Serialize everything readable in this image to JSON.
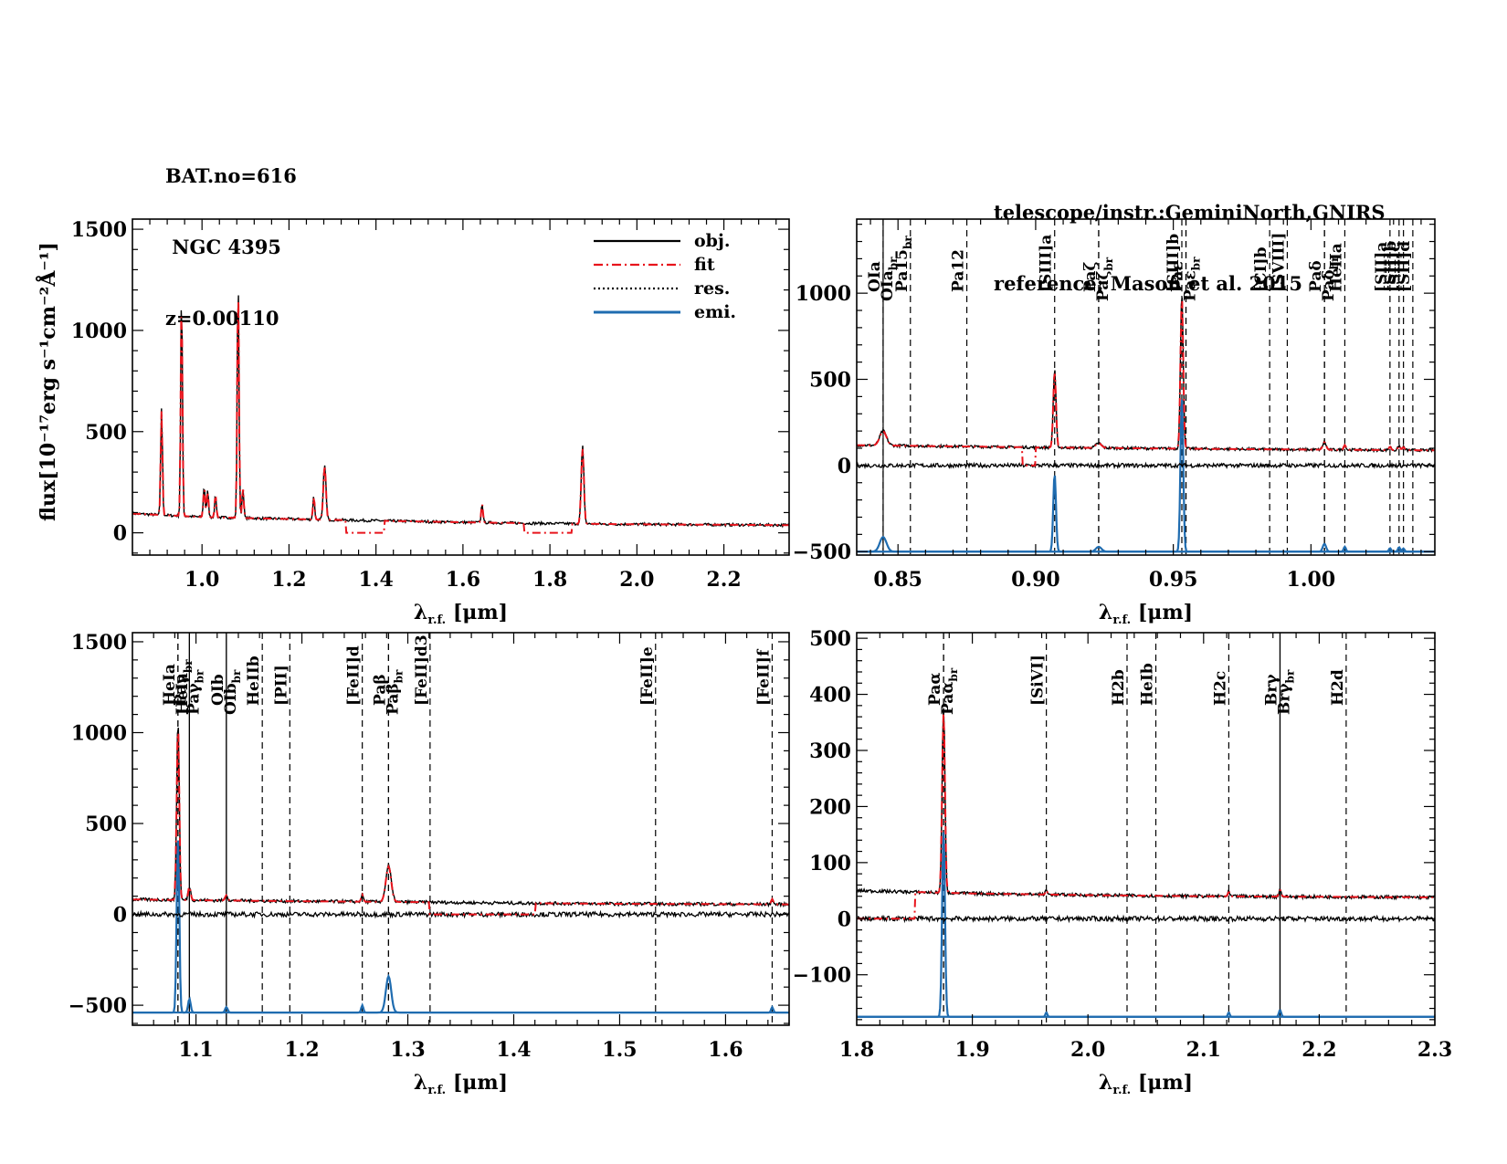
{
  "header": {
    "object_lines": [
      "BAT.no=616",
      " NGC 4395",
      "z=0.00110"
    ],
    "telescope": "telescope/instr.:GeminiNorth,GNIRS",
    "reference": "reference: Mason et al. 2015"
  },
  "legend": {
    "placement": "top-right",
    "entries": [
      {
        "key": "obj",
        "label": "obj.",
        "color": "#000000",
        "style": "solid"
      },
      {
        "key": "fit",
        "label": "fit",
        "color": "#e8141c",
        "style": "dash-dot"
      },
      {
        "key": "res",
        "label": "res.",
        "color": "#000000",
        "style": "dotted"
      },
      {
        "key": "emi",
        "label": "emi.",
        "color": "#1f6cb0",
        "style": "solid"
      }
    ]
  },
  "colors": {
    "obj": "#000000",
    "fit": "#e8141c",
    "res": "#000000",
    "emi": "#1f6cb0"
  },
  "chart_data": [
    {
      "type": "line",
      "id": "full",
      "xlabel": "λr.f. [μm]",
      "ylabel": "flux[10⁻¹⁷erg s⁻¹cm⁻²Å⁻¹]",
      "xlim": [
        0.84,
        2.35
      ],
      "ylim": [
        -110,
        1550
      ],
      "xticks": [
        1.0,
        1.2,
        1.4,
        1.6,
        1.8,
        2.0,
        2.2
      ],
      "xtick_labels": [
        "1.0",
        "1.2",
        "1.4",
        "1.6",
        "1.8",
        "2.0",
        "2.2"
      ],
      "yticks": [
        0,
        500,
        1000,
        1500
      ],
      "ytick_labels": [
        "0",
        "500",
        "1000",
        "1500"
      ],
      "continuum": [
        [
          0.84,
          95
        ],
        [
          1.0,
          78
        ],
        [
          1.2,
          68
        ],
        [
          1.4,
          60
        ],
        [
          1.6,
          52
        ],
        [
          1.8,
          46
        ],
        [
          2.0,
          42
        ],
        [
          2.35,
          38
        ]
      ],
      "peaks": [
        {
          "x": 0.907,
          "y": 530,
          "w": 0.002
        },
        {
          "x": 0.953,
          "y": 1105,
          "w": 0.002
        },
        {
          "x": 1.005,
          "y": 155,
          "w": 0.002
        },
        {
          "x": 1.013,
          "y": 130,
          "w": 0.002
        },
        {
          "x": 1.031,
          "y": 110,
          "w": 0.002
        },
        {
          "x": 1.083,
          "y": 1185,
          "w": 0.002
        },
        {
          "x": 1.094,
          "y": 150,
          "w": 0.002
        },
        {
          "x": 1.257,
          "y": 115,
          "w": 0.002
        },
        {
          "x": 1.282,
          "y": 275,
          "w": 0.003
        },
        {
          "x": 1.644,
          "y": 95,
          "w": 0.002
        },
        {
          "x": 1.875,
          "y": 385,
          "w": 0.003
        }
      ],
      "fit_gaps": [
        [
          1.33,
          1.42
        ],
        [
          1.74,
          1.85
        ]
      ],
      "show_residual": false,
      "show_emission": false,
      "lines": []
    },
    {
      "type": "line",
      "id": "zoom-0.84-1.05",
      "xlabel": "λr.f. [μm]",
      "xlim": [
        0.835,
        1.045
      ],
      "ylim": [
        -520,
        1430
      ],
      "xticks": [
        0.85,
        0.9,
        0.95,
        1.0
      ],
      "xtick_labels": [
        "0.85",
        "0.90",
        "0.95",
        "1.00"
      ],
      "yticks": [
        -500,
        0,
        500,
        1000
      ],
      "ytick_labels": [
        "−500",
        "0",
        "500",
        "1000"
      ],
      "continuum": [
        [
          0.835,
          118
        ],
        [
          0.9,
          105
        ],
        [
          0.95,
          98
        ],
        [
          1.0,
          92
        ],
        [
          1.045,
          88
        ]
      ],
      "peaks": [
        {
          "x": 0.8446,
          "y": 85,
          "w": 0.0012
        },
        {
          "x": 0.9069,
          "y": 450,
          "w": 0.0005
        },
        {
          "x": 0.9229,
          "y": 28,
          "w": 0.001
        },
        {
          "x": 0.9531,
          "y": 900,
          "w": 0.0005
        },
        {
          "x": 1.0049,
          "y": 45,
          "w": 0.0006
        },
        {
          "x": 1.0123,
          "y": 28,
          "w": 0.0004
        },
        {
          "x": 1.0287,
          "y": 20,
          "w": 0.0004
        },
        {
          "x": 1.032,
          "y": 26,
          "w": 0.0004
        },
        {
          "x": 1.0336,
          "y": 18,
          "w": 0.0004
        }
      ],
      "fit_gaps": [
        [
          0.895,
          0.9
        ]
      ],
      "show_residual": true,
      "residual_offset": 0,
      "emission_base": -500,
      "show_emission": true,
      "lines": [
        {
          "x": 0.8446,
          "label": "OIa",
          "style": "solid"
        },
        {
          "x": 0.8446,
          "label": "OIa_br",
          "style": "dashed",
          "second": true
        },
        {
          "x": 0.8545,
          "label": "Pa15_br",
          "style": "dashed"
        },
        {
          "x": 0.875,
          "label": "Pa12",
          "style": "dashed"
        },
        {
          "x": 0.9069,
          "label": "[SIII]a",
          "style": "dashed"
        },
        {
          "x": 0.9229,
          "label": "Paζ",
          "style": "dashed"
        },
        {
          "x": 0.9229,
          "label": "Paζ_br",
          "style": "dashed",
          "second": true
        },
        {
          "x": 0.9531,
          "label": "[SIII]b",
          "style": "dashed"
        },
        {
          "x": 0.9546,
          "label": "Paε",
          "style": "dashed"
        },
        {
          "x": 0.9546,
          "label": "Paε_br",
          "style": "dashed",
          "second": true
        },
        {
          "x": 0.985,
          "label": "[CI]b",
          "style": "dashed"
        },
        {
          "x": 0.9914,
          "label": "[SVIII]",
          "style": "dashed"
        },
        {
          "x": 1.0049,
          "label": "Paδ",
          "style": "dashed"
        },
        {
          "x": 1.0049,
          "label": "Paδ_br",
          "style": "dashed",
          "second": true
        },
        {
          "x": 1.0123,
          "label": "HeIIa",
          "style": "dashed"
        },
        {
          "x": 1.0287,
          "label": "[SII]a",
          "style": "dashed"
        },
        {
          "x": 1.032,
          "label": "[SII]b",
          "style": "dashed"
        },
        {
          "x": 1.0336,
          "label": "[SII]c",
          "style": "dashed"
        },
        {
          "x": 1.037,
          "label": "[SII]d",
          "style": "dashed"
        }
      ]
    },
    {
      "type": "line",
      "id": "zoom-1.04-1.66",
      "xlabel": "λr.f. [μm]",
      "xlim": [
        1.04,
        1.66
      ],
      "ylim": [
        -610,
        1550
      ],
      "xticks": [
        1.1,
        1.2,
        1.3,
        1.4,
        1.5,
        1.6
      ],
      "xtick_labels": [
        "1.1",
        "1.2",
        "1.3",
        "1.4",
        "1.5",
        "1.6"
      ],
      "yticks": [
        -500,
        0,
        500,
        1000,
        1500
      ],
      "ytick_labels": [
        "−500",
        "0",
        "500",
        "1000",
        "1500"
      ],
      "continuum": [
        [
          1.04,
          82
        ],
        [
          1.1,
          78
        ],
        [
          1.2,
          72
        ],
        [
          1.3,
          68
        ],
        [
          1.4,
          62
        ],
        [
          1.5,
          58
        ],
        [
          1.66,
          55
        ]
      ],
      "peaks": [
        {
          "x": 1.083,
          "y": 1000,
          "w": 0.0012
        },
        {
          "x": 1.0938,
          "y": 75,
          "w": 0.0012
        },
        {
          "x": 1.1287,
          "y": 30,
          "w": 0.0012
        },
        {
          "x": 1.257,
          "y": 40,
          "w": 0.001
        },
        {
          "x": 1.2818,
          "y": 200,
          "w": 0.0025
        },
        {
          "x": 1.644,
          "y": 30,
          "w": 0.001
        }
      ],
      "fit_gaps": [
        [
          1.32,
          1.42
        ]
      ],
      "show_residual": true,
      "residual_offset": 0,
      "emission_base": -540,
      "show_emission": true,
      "lines": [
        {
          "x": 1.083,
          "label": "HeIa",
          "style": "dashed"
        },
        {
          "x": 1.083,
          "label": "HeIa_br",
          "style": "dashed",
          "second": true
        },
        {
          "x": 1.0938,
          "label": "Paγ",
          "style": "solid"
        },
        {
          "x": 1.0938,
          "label": "Paγ_br",
          "style": "solid",
          "second": true
        },
        {
          "x": 1.1287,
          "label": "OIb",
          "style": "solid"
        },
        {
          "x": 1.1287,
          "label": "OIb_br",
          "style": "solid",
          "second": true
        },
        {
          "x": 1.1626,
          "label": "HeIIb",
          "style": "dashed"
        },
        {
          "x": 1.1886,
          "label": "[PII]",
          "style": "dashed"
        },
        {
          "x": 1.257,
          "label": "[FeII]d",
          "style": "dashed"
        },
        {
          "x": 1.2818,
          "label": "Paβ",
          "style": "dashed"
        },
        {
          "x": 1.2818,
          "label": "Paβ_br",
          "style": "dashed",
          "second": true
        },
        {
          "x": 1.321,
          "label": "[FeII]d3",
          "style": "dashed"
        },
        {
          "x": 1.5339,
          "label": "[FeII]e",
          "style": "dashed"
        },
        {
          "x": 1.644,
          "label": "[FeII]f",
          "style": "dashed"
        }
      ]
    },
    {
      "type": "line",
      "id": "zoom-1.8-2.3",
      "xlabel": "λr.f. [μm]",
      "xlim": [
        1.8,
        2.3
      ],
      "ylim": [
        -190,
        510
      ],
      "xticks": [
        1.8,
        1.9,
        2.0,
        2.1,
        2.2,
        2.3
      ],
      "xtick_labels": [
        "1.8",
        "1.9",
        "2.0",
        "2.1",
        "2.2",
        "2.3"
      ],
      "yticks": [
        -100,
        0,
        100,
        200,
        300,
        400,
        500
      ],
      "ytick_labels": [
        "−100",
        "0",
        "100",
        "200",
        "300",
        "400",
        "500"
      ],
      "continuum": [
        [
          1.8,
          50
        ],
        [
          1.9,
          45
        ],
        [
          2.0,
          42
        ],
        [
          2.1,
          40
        ],
        [
          2.3,
          38
        ]
      ],
      "peaks": [
        {
          "x": 1.8751,
          "y": 330,
          "w": 0.0012
        },
        {
          "x": 1.964,
          "y": 8,
          "w": 0.0008
        },
        {
          "x": 2.1218,
          "y": 8,
          "w": 0.0008
        },
        {
          "x": 2.1661,
          "y": 12,
          "w": 0.001
        }
      ],
      "fit_gaps": [
        [
          1.8,
          1.85
        ]
      ],
      "show_residual": true,
      "residual_offset": 0,
      "emission_base": -175,
      "show_emission": true,
      "lines": [
        {
          "x": 1.8751,
          "label": "Paα",
          "style": "dashed"
        },
        {
          "x": 1.8751,
          "label": "Paα_br",
          "style": "dashed",
          "second": true
        },
        {
          "x": 1.964,
          "label": "[SiVI]",
          "style": "dashed"
        },
        {
          "x": 2.0338,
          "label": "H2b",
          "style": "dashed"
        },
        {
          "x": 2.0587,
          "label": "HeIb",
          "style": "dashed"
        },
        {
          "x": 2.1218,
          "label": "H2c",
          "style": "dashed"
        },
        {
          "x": 2.1661,
          "label": "Brγ",
          "style": "solid"
        },
        {
          "x": 2.1661,
          "label": "Brγ_br",
          "style": "solid",
          "second": true
        },
        {
          "x": 2.2233,
          "label": "H2d",
          "style": "dashed"
        }
      ]
    }
  ]
}
